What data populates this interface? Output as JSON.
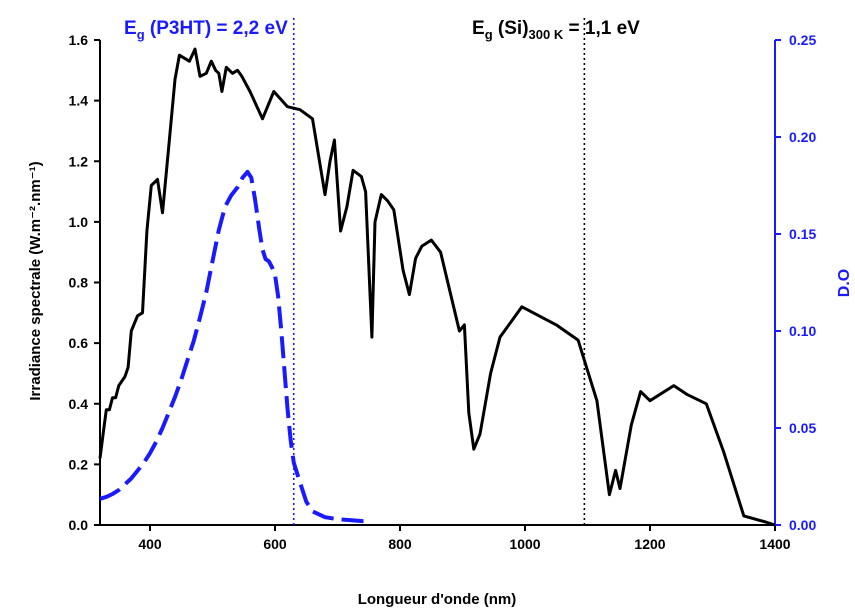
{
  "chart_data": {
    "type": "line",
    "xlabel": "Longueur d'onde (nm)",
    "ylabel_left": "Irradiance spectrale (W.m⁻².nm⁻¹)",
    "ylabel_right": "D.O",
    "xlim": [
      320,
      1400
    ],
    "ylim_left": [
      0,
      1.6
    ],
    "ylim_right": [
      0,
      0.25
    ],
    "x_ticks": [
      400,
      600,
      800,
      1000,
      1200,
      1400
    ],
    "y_left_ticks": [
      "0.0",
      "0.2",
      "0.4",
      "0.6",
      "0.8",
      "1.0",
      "1.2",
      "1.4",
      "1.6"
    ],
    "y_right_ticks": [
      "0.00",
      "0.05",
      "0.10",
      "0.15",
      "0.20",
      "0.25"
    ],
    "grid": false,
    "colors": {
      "irradiance": "#000000",
      "absorbance": "#1a1aff",
      "right_axis": "#1a1aff"
    },
    "annotations": [
      {
        "base": "E",
        "sub": "g",
        "rest": " (P3HT) = 2,2 eV",
        "x": 630,
        "color": "#1a1aff"
      },
      {
        "base": "E",
        "sub": "g",
        "rest": " (Si)",
        "sub2": "300 K",
        "rest2": " = 1,1 eV",
        "x": 1095,
        "color": "#000000"
      }
    ],
    "series": [
      {
        "axis": "left",
        "style": "solid",
        "points": [
          [
            320,
            0.22
          ],
          [
            325,
            0.3
          ],
          [
            330,
            0.38
          ],
          [
            335,
            0.38
          ],
          [
            340,
            0.42
          ],
          [
            345,
            0.42
          ],
          [
            350,
            0.46
          ],
          [
            360,
            0.49
          ],
          [
            365,
            0.52
          ],
          [
            370,
            0.64
          ],
          [
            380,
            0.69
          ],
          [
            388,
            0.7
          ],
          [
            395,
            0.97
          ],
          [
            402,
            1.12
          ],
          [
            412,
            1.14
          ],
          [
            420,
            1.03
          ],
          [
            430,
            1.25
          ],
          [
            440,
            1.47
          ],
          [
            447,
            1.55
          ],
          [
            455,
            1.54
          ],
          [
            463,
            1.53
          ],
          [
            472,
            1.57
          ],
          [
            480,
            1.48
          ],
          [
            490,
            1.49
          ],
          [
            498,
            1.53
          ],
          [
            505,
            1.5
          ],
          [
            510,
            1.49
          ],
          [
            515,
            1.43
          ],
          [
            522,
            1.51
          ],
          [
            532,
            1.49
          ],
          [
            540,
            1.5
          ],
          [
            547,
            1.48
          ],
          [
            560,
            1.43
          ],
          [
            580,
            1.34
          ],
          [
            598,
            1.43
          ],
          [
            620,
            1.38
          ],
          [
            640,
            1.37
          ],
          [
            660,
            1.34
          ],
          [
            680,
            1.09
          ],
          [
            688,
            1.2
          ],
          [
            695,
            1.27
          ],
          [
            705,
            0.97
          ],
          [
            715,
            1.05
          ],
          [
            725,
            1.17
          ],
          [
            738,
            1.15
          ],
          [
            745,
            1.1
          ],
          [
            755,
            0.62
          ],
          [
            760,
            1.0
          ],
          [
            770,
            1.09
          ],
          [
            780,
            1.07
          ],
          [
            790,
            1.04
          ],
          [
            805,
            0.84
          ],
          [
            815,
            0.76
          ],
          [
            825,
            0.88
          ],
          [
            835,
            0.92
          ],
          [
            850,
            0.94
          ],
          [
            865,
            0.9
          ],
          [
            880,
            0.77
          ],
          [
            895,
            0.64
          ],
          [
            903,
            0.66
          ],
          [
            910,
            0.37
          ],
          [
            918,
            0.25
          ],
          [
            928,
            0.3
          ],
          [
            945,
            0.5
          ],
          [
            960,
            0.62
          ],
          [
            995,
            0.72
          ],
          [
            1050,
            0.66
          ],
          [
            1085,
            0.61
          ],
          [
            1115,
            0.41
          ],
          [
            1135,
            0.1
          ],
          [
            1145,
            0.18
          ],
          [
            1152,
            0.12
          ],
          [
            1170,
            0.33
          ],
          [
            1185,
            0.44
          ],
          [
            1200,
            0.41
          ],
          [
            1238,
            0.46
          ],
          [
            1260,
            0.43
          ],
          [
            1290,
            0.4
          ],
          [
            1318,
            0.24
          ],
          [
            1350,
            0.03
          ],
          [
            1385,
            0.01
          ],
          [
            1400,
            0.0
          ]
        ]
      },
      {
        "axis": "right",
        "style": "dashed",
        "points": [
          [
            320,
            0.0135
          ],
          [
            330,
            0.0145
          ],
          [
            340,
            0.016
          ],
          [
            350,
            0.018
          ],
          [
            360,
            0.021
          ],
          [
            370,
            0.024
          ],
          [
            380,
            0.028
          ],
          [
            390,
            0.032
          ],
          [
            400,
            0.037
          ],
          [
            410,
            0.043
          ],
          [
            420,
            0.05
          ],
          [
            430,
            0.058
          ],
          [
            440,
            0.066
          ],
          [
            450,
            0.075
          ],
          [
            460,
            0.085
          ],
          [
            470,
            0.095
          ],
          [
            480,
            0.107
          ],
          [
            490,
            0.12
          ],
          [
            500,
            0.136
          ],
          [
            510,
            0.152
          ],
          [
            520,
            0.164
          ],
          [
            530,
            0.17
          ],
          [
            540,
            0.174
          ],
          [
            548,
            0.179
          ],
          [
            556,
            0.182
          ],
          [
            562,
            0.179
          ],
          [
            568,
            0.168
          ],
          [
            575,
            0.152
          ],
          [
            580,
            0.142
          ],
          [
            585,
            0.137
          ],
          [
            590,
            0.136
          ],
          [
            595,
            0.133
          ],
          [
            600,
            0.129
          ],
          [
            605,
            0.118
          ],
          [
            610,
            0.1
          ],
          [
            615,
            0.08
          ],
          [
            620,
            0.06
          ],
          [
            625,
            0.044
          ],
          [
            630,
            0.032
          ],
          [
            640,
            0.022
          ],
          [
            650,
            0.012
          ],
          [
            660,
            0.007
          ],
          [
            680,
            0.004
          ],
          [
            700,
            0.003
          ],
          [
            720,
            0.0025
          ],
          [
            740,
            0.002
          ],
          [
            750,
            0.002
          ]
        ]
      }
    ],
    "vertical_lines": [
      {
        "x": 630,
        "color": "#1a1aff",
        "style": "dotted"
      },
      {
        "x": 1095,
        "color": "#000000",
        "style": "dotted"
      }
    ]
  }
}
